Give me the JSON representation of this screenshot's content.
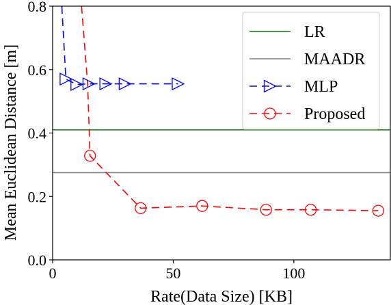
{
  "chart_data": {
    "type": "line",
    "title": "",
    "xlabel": "Rate(Data Size) [KB]",
    "ylabel": "Mean Euclidean Distance [m]",
    "xlim": [
      0,
      140
    ],
    "ylim": [
      0.0,
      0.8
    ],
    "x_ticks": [
      "0",
      "50",
      "100"
    ],
    "y_ticks": [
      "0.0",
      "0.2",
      "0.4",
      "0.6",
      "0.8"
    ],
    "x_tick_values": [
      0,
      50,
      100
    ],
    "y_tick_values": [
      0.0,
      0.2,
      0.4,
      0.6,
      0.8
    ],
    "grid": false,
    "legend_position": "top-right",
    "series": [
      {
        "name": "LR",
        "kind": "hline",
        "value": 0.41,
        "color": "#008000",
        "dash": "solid",
        "marker": "none"
      },
      {
        "name": "MAADR",
        "kind": "hline",
        "value": 0.275,
        "color": "#808080",
        "dash": "solid",
        "marker": "none"
      },
      {
        "name": "MLP",
        "kind": "line",
        "color": "#0000ff",
        "dash": "dashed",
        "marker": "triangle-right",
        "x": [
          3.8,
          5.5,
          10,
          15,
          22,
          30,
          52
        ],
        "y": [
          0.8,
          0.57,
          0.553,
          0.555,
          0.555,
          0.555,
          0.555
        ],
        "markers": [
          false,
          true,
          true,
          true,
          true,
          true,
          true
        ]
      },
      {
        "name": "Proposed",
        "kind": "line",
        "color": "#ff0000",
        "dash": "dashed",
        "marker": "circle",
        "x": [
          12,
          14.5,
          15.5,
          36.5,
          62,
          88.5,
          107,
          135
        ],
        "y": [
          0.8,
          0.555,
          0.328,
          0.163,
          0.17,
          0.158,
          0.158,
          0.155
        ],
        "markers": [
          false,
          false,
          true,
          true,
          true,
          true,
          true,
          true
        ]
      }
    ]
  }
}
